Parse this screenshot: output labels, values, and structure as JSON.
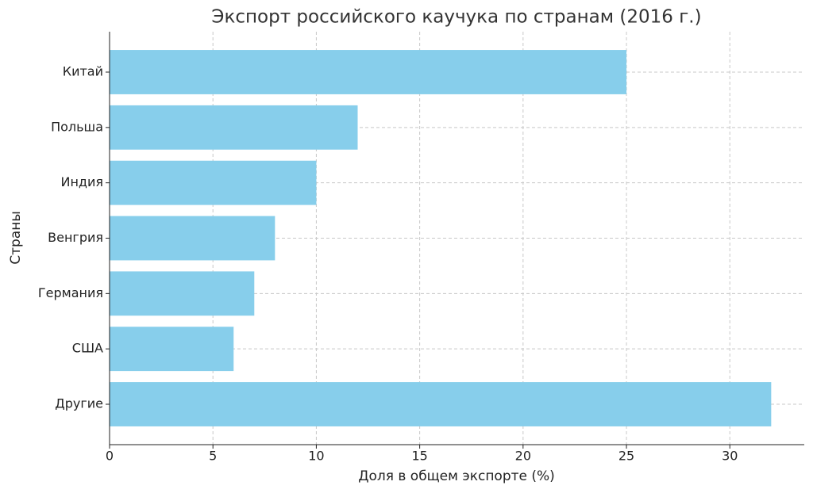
{
  "chart_data": {
    "type": "hbar",
    "title": "Экспорт российского каучука по странам (2016 г.)",
    "x_label": "Доля в общем экспорте (%)",
    "y_label": "Страны",
    "categories": [
      "Китай",
      "Польша",
      "Индия",
      "Венгрия",
      "Германия",
      "США",
      "Другие"
    ],
    "values": [
      25,
      12,
      10,
      8,
      7,
      6,
      32
    ],
    "color": "#87ceeb",
    "xlim": [
      0,
      33.6
    ],
    "xticks": [
      0,
      5,
      10,
      15,
      20,
      25,
      30
    ],
    "grid": true
  }
}
